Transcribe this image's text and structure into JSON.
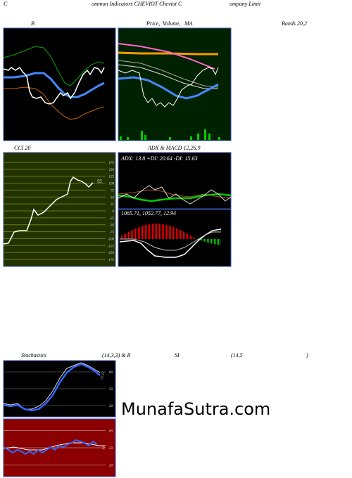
{
  "header": {
    "left": "C",
    "middle": "ommon  Indicators CHEVIOT Cheviot C",
    "right": "ompany Limit"
  },
  "panels": {
    "bands": {
      "left": "B",
      "middle_price": "Price,",
      "middle_volume": "Volume,",
      "middle_ma": "MA",
      "right": "Bands 20,2"
    },
    "cci": {
      "title": "CCI 20",
      "ticks": [
        "175",
        "150",
        "125",
        "100",
        "75",
        "50",
        "25",
        "0",
        "-25",
        "-50",
        "-75",
        "-100",
        "-125",
        "-150",
        "-175"
      ],
      "value_label": "95"
    },
    "adx": {
      "title": "ADX  & MACD 12,26,9",
      "readout": "ADX: 13.8  +DI: 20.64  -DI: 15.63"
    },
    "macd": {
      "readout": "1065.71,  1052.77,  12.94"
    },
    "stoch": {
      "title_a": "Stochastics",
      "title_b": "(14,3,3) & R",
      "title_c": "SI",
      "title_d": "(14,5",
      "title_e": ")",
      "ticks": [
        "80",
        "50",
        "20"
      ],
      "value_label": "72.13"
    },
    "rsi": {
      "ticks": [
        "80",
        "50",
        "20"
      ],
      "value_label": "31"
    }
  },
  "watermark": "MunafaSutra.com"
}
